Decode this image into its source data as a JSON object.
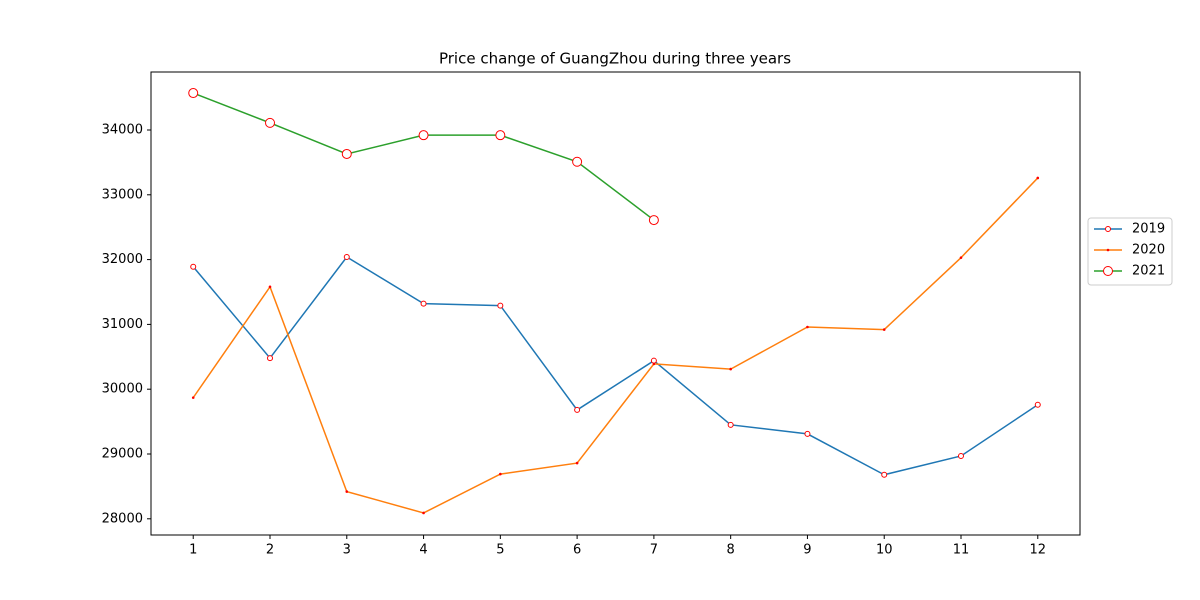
{
  "chart_data": {
    "type": "line",
    "title": "Price change of GuangZhou during three years",
    "x": [
      1,
      2,
      3,
      4,
      5,
      6,
      7,
      8,
      9,
      10,
      11,
      12
    ],
    "series": [
      {
        "name": "2019",
        "color": "#1f77b4",
        "marker": "o",
        "marker_size": 2.5,
        "marker_edge": "red",
        "marker_face": "white",
        "values": [
          31890,
          30480,
          32040,
          31320,
          31290,
          29680,
          30440,
          29450,
          29310,
          28680,
          28970,
          29760
        ]
      },
      {
        "name": "2020",
        "color": "#ff7f0e",
        "marker": ".",
        "marker_size": 0.8,
        "marker_edge": "red",
        "marker_face": "red",
        "values": [
          29870,
          31580,
          28420,
          28090,
          28690,
          28860,
          30390,
          30310,
          30960,
          30920,
          32030,
          33260
        ]
      },
      {
        "name": "2021",
        "color": "#2ca02c",
        "marker": "o",
        "marker_size": 4.5,
        "marker_edge": "red",
        "marker_face": "white",
        "values": [
          34570,
          34110,
          33630,
          33920,
          33920,
          33510,
          32610,
          null,
          null,
          null,
          null,
          null
        ]
      }
    ],
    "xlim": [
      0.45,
      12.55
    ],
    "xticks": [
      1,
      2,
      3,
      4,
      5,
      6,
      7,
      8,
      9,
      10,
      11,
      12
    ],
    "ylim": [
      27750,
      34895
    ],
    "yticks": [
      28000,
      29000,
      30000,
      31000,
      32000,
      33000,
      34000
    ],
    "grid": false,
    "legend": "right"
  }
}
